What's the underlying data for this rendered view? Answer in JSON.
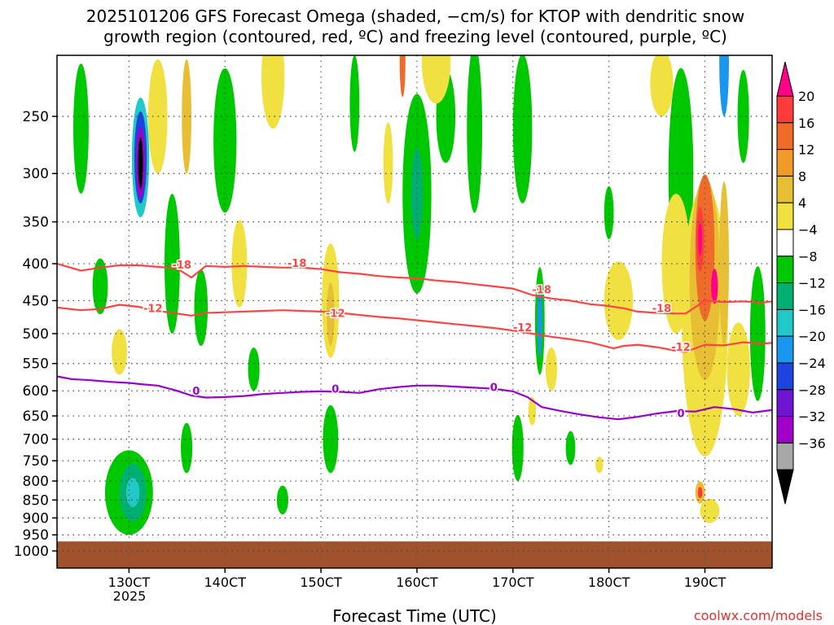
{
  "chart_data": {
    "type": "heatmap",
    "title_line1": "2025101206 GFS Forecast Omega (shaded, −cm/s) for KTOP with dendritic snow",
    "title_line2": "growth region (contoured, red, ºC) and freezing level (contoured, purple, ºC)",
    "xlabel": "Forecast Time (UTC)",
    "ylabel": "",
    "credit": "coolwx.com/models",
    "year_label": "2025",
    "x_ticks": [
      {
        "label": "130CT",
        "value": 130
      },
      {
        "label": "140CT",
        "value": 140
      },
      {
        "label": "150CT",
        "value": 150
      },
      {
        "label": "160CT",
        "value": 160
      },
      {
        "label": "170CT",
        "value": 170
      },
      {
        "label": "180CT",
        "value": 180
      },
      {
        "label": "190CT",
        "value": 190
      }
    ],
    "xlim": [
      122.5,
      197
    ],
    "y_ticks": [
      250,
      300,
      350,
      400,
      450,
      500,
      550,
      600,
      650,
      700,
      750,
      800,
      850,
      900,
      950,
      1000
    ],
    "ylim": [
      200,
      1000
    ],
    "y_scale": "log-pressure (inverted)",
    "colorbar": {
      "labels": [
        "20",
        "16",
        "12",
        "8",
        "4",
        "−4",
        "−8",
        "−12",
        "−16",
        "−20",
        "−24",
        "−28",
        "−32",
        "−36"
      ],
      "colors": [
        "#ff0088",
        "#ff3b3b",
        "#f06a2a",
        "#f09a2a",
        "#e8be34",
        "#f0e040",
        "#ffffff",
        "#00c800",
        "#00b070",
        "#20c8c8",
        "#1896f0",
        "#1e44e0",
        "#6e14d2",
        "#a000c8",
        "#a8a8a8",
        "#000000"
      ]
    },
    "contours": [
      {
        "name": "-18",
        "color": "#ff4444",
        "x": [
          122.5,
          125,
          127,
          129,
          131,
          133,
          135,
          136.5,
          138,
          140,
          142,
          144,
          146,
          148,
          150,
          152,
          154,
          156,
          158,
          160,
          162,
          164,
          166,
          168,
          170,
          172,
          174,
          176,
          178,
          179.5,
          180.5,
          181.5,
          183,
          185,
          187,
          188,
          190,
          192,
          194,
          196,
          197
        ],
        "y": [
          400,
          409,
          405,
          402,
          402,
          404,
          406,
          418,
          403,
          404,
          403,
          404,
          405,
          405,
          407,
          411,
          413,
          416,
          418,
          419,
          422,
          424,
          427,
          430,
          433,
          442,
          447,
          450,
          455,
          457,
          459,
          461,
          466,
          468,
          469,
          469,
          450,
          452,
          451,
          453,
          451
        ],
        "labels": [
          {
            "x": 135.5,
            "y": 401,
            "text": "-18"
          },
          {
            "x": 147.5,
            "y": 399,
            "text": "-18"
          },
          {
            "x": 173,
            "y": 434,
            "text": "-18"
          },
          {
            "x": 185.5,
            "y": 461,
            "text": "-18"
          }
        ]
      },
      {
        "name": "-12",
        "color": "#ff4444",
        "x": [
          122.5,
          125,
          127,
          129,
          131,
          133,
          135,
          136.5,
          138,
          140,
          142,
          144,
          146,
          148,
          150,
          152,
          154,
          156,
          158,
          160,
          162,
          164,
          166,
          168,
          170,
          172,
          174,
          176,
          178,
          179.5,
          180.5,
          181.5,
          183,
          185,
          187,
          188,
          190,
          192,
          194,
          196,
          197
        ],
        "y": [
          460,
          464,
          462,
          456,
          459,
          465,
          469,
          472,
          468,
          467,
          466,
          465,
          464,
          465,
          466,
          468,
          471,
          474,
          476,
          479,
          482,
          485,
          488,
          491,
          495,
          500,
          505,
          509,
          514,
          520,
          524,
          520,
          518,
          522,
          528,
          530,
          518,
          519,
          514,
          516,
          515
        ],
        "labels": [
          {
            "x": 132.5,
            "y": 461,
            "text": "-12"
          },
          {
            "x": 151.5,
            "y": 468,
            "text": "-12"
          },
          {
            "x": 171,
            "y": 490,
            "text": "-12"
          },
          {
            "x": 187.5,
            "y": 521,
            "text": "-12"
          }
        ]
      },
      {
        "name": "0",
        "color": "#9900cc",
        "x": [
          122.5,
          124,
          126,
          128,
          130,
          131.5,
          133,
          135,
          136.5,
          138,
          140,
          142,
          144,
          146,
          148,
          150,
          152,
          154,
          156,
          158,
          160,
          162,
          164,
          166,
          168,
          170,
          171.5,
          173,
          175,
          177,
          179,
          181,
          183,
          185,
          187,
          189,
          191,
          193,
          195,
          197
        ],
        "y": [
          573,
          578,
          580,
          583,
          585,
          588,
          590,
          600,
          609,
          613,
          612,
          610,
          606,
          604,
          602,
          601,
          602,
          604,
          597,
          593,
          590,
          590,
          592,
          594,
          596,
          601,
          612,
          632,
          640,
          647,
          653,
          657,
          652,
          645,
          640,
          641,
          632,
          636,
          643,
          638
        ],
        "labels": [
          {
            "x": 137,
            "y": 600,
            "text": "0"
          },
          {
            "x": 151.5,
            "y": 596,
            "text": "0"
          },
          {
            "x": 168,
            "y": 593,
            "text": "0"
          },
          {
            "x": 187.5,
            "y": 644,
            "text": "0"
          }
        ]
      }
    ],
    "omega_regions": [
      {
        "x": 130,
        "y": 830,
        "rx": 2.5,
        "ry": 120,
        "color": "#00c800"
      },
      {
        "x": 130.4,
        "y": 830,
        "rx": 1.4,
        "ry": 80,
        "color": "#00b070"
      },
      {
        "x": 130.4,
        "y": 830,
        "rx": 0.7,
        "ry": 40,
        "color": "#20c8c8"
      },
      {
        "x": 131.2,
        "y": 285,
        "rx": 0.9,
        "ry": 60,
        "color": "#20c8c8"
      },
      {
        "x": 131.2,
        "y": 285,
        "rx": 0.65,
        "ry": 45,
        "color": "#1e44e0"
      },
      {
        "x": 131.2,
        "y": 290,
        "rx": 0.45,
        "ry": 35,
        "color": "#a000c8"
      },
      {
        "x": 131.2,
        "y": 290,
        "rx": 0.25,
        "ry": 25,
        "color": "#000000"
      },
      {
        "x": 125,
        "y": 260,
        "rx": 0.8,
        "ry": 60,
        "color": "#00c800"
      },
      {
        "x": 127,
        "y": 430,
        "rx": 0.8,
        "ry": 40,
        "color": "#00c800"
      },
      {
        "x": 134.5,
        "y": 400,
        "rx": 0.8,
        "ry": 100,
        "color": "#00c800"
      },
      {
        "x": 136,
        "y": 720,
        "rx": 0.6,
        "ry": 60,
        "color": "#00c800"
      },
      {
        "x": 137.5,
        "y": 460,
        "rx": 0.7,
        "ry": 60,
        "color": "#00c800"
      },
      {
        "x": 140,
        "y": 270,
        "rx": 1.2,
        "ry": 70,
        "color": "#00c800"
      },
      {
        "x": 143,
        "y": 560,
        "rx": 0.6,
        "ry": 40,
        "color": "#00c800"
      },
      {
        "x": 146,
        "y": 850,
        "rx": 0.6,
        "ry": 40,
        "color": "#00c800"
      },
      {
        "x": 151,
        "y": 700,
        "rx": 0.8,
        "ry": 80,
        "color": "#00c800"
      },
      {
        "x": 153.5,
        "y": 240,
        "rx": 0.5,
        "ry": 40,
        "color": "#00c800"
      },
      {
        "x": 160,
        "y": 320,
        "rx": 1.5,
        "ry": 120,
        "color": "#00c800"
      },
      {
        "x": 160,
        "y": 320,
        "rx": 0.6,
        "ry": 50,
        "color": "#00b070"
      },
      {
        "x": 163,
        "y": 250,
        "rx": 1.0,
        "ry": 40,
        "color": "#00c800"
      },
      {
        "x": 166,
        "y": 260,
        "rx": 0.8,
        "ry": 80,
        "color": "#00c800"
      },
      {
        "x": 171,
        "y": 260,
        "rx": 1.0,
        "ry": 70,
        "color": "#00c800"
      },
      {
        "x": 172.8,
        "y": 480,
        "rx": 0.5,
        "ry": 90,
        "color": "#00c800"
      },
      {
        "x": 172.8,
        "y": 480,
        "rx": 0.25,
        "ry": 60,
        "color": "#1896f0"
      },
      {
        "x": 170.5,
        "y": 720,
        "rx": 0.6,
        "ry": 80,
        "color": "#00c800"
      },
      {
        "x": 176,
        "y": 720,
        "rx": 0.5,
        "ry": 40,
        "color": "#00c800"
      },
      {
        "x": 180,
        "y": 340,
        "rx": 0.5,
        "ry": 30,
        "color": "#00c800"
      },
      {
        "x": 187.5,
        "y": 300,
        "rx": 1.3,
        "ry": 120,
        "color": "#00c800"
      },
      {
        "x": 189,
        "y": 580,
        "rx": 0.6,
        "ry": 50,
        "color": "#00c800"
      },
      {
        "x": 194,
        "y": 250,
        "rx": 0.6,
        "ry": 40,
        "color": "#00c800"
      },
      {
        "x": 195.5,
        "y": 500,
        "rx": 0.8,
        "ry": 120,
        "color": "#00c800"
      },
      {
        "x": 192,
        "y": 210,
        "rx": 0.5,
        "ry": 40,
        "color": "#1896f0"
      },
      {
        "x": 129,
        "y": 530,
        "rx": 0.8,
        "ry": 40,
        "color": "#f0e040"
      },
      {
        "x": 133,
        "y": 250,
        "rx": 1.0,
        "ry": 50,
        "color": "#f0e040"
      },
      {
        "x": 136,
        "y": 250,
        "rx": 0.5,
        "ry": 50,
        "color": "#e8be34"
      },
      {
        "x": 141.5,
        "y": 400,
        "rx": 0.8,
        "ry": 60,
        "color": "#f0e040"
      },
      {
        "x": 145,
        "y": 220,
        "rx": 1.2,
        "ry": 40,
        "color": "#f0e040"
      },
      {
        "x": 151,
        "y": 450,
        "rx": 0.9,
        "ry": 90,
        "color": "#f0e040"
      },
      {
        "x": 151,
        "y": 470,
        "rx": 0.4,
        "ry": 50,
        "color": "#e8be34"
      },
      {
        "x": 157,
        "y": 290,
        "rx": 0.5,
        "ry": 40,
        "color": "#f0e040"
      },
      {
        "x": 162,
        "y": 210,
        "rx": 1.5,
        "ry": 30,
        "color": "#f0e040"
      },
      {
        "x": 158.5,
        "y": 210,
        "rx": 0.3,
        "ry": 25,
        "color": "#f06a2a"
      },
      {
        "x": 174,
        "y": 560,
        "rx": 0.6,
        "ry": 40,
        "color": "#f0e040"
      },
      {
        "x": 172,
        "y": 640,
        "rx": 0.4,
        "ry": 30,
        "color": "#f0e040"
      },
      {
        "x": 181,
        "y": 450,
        "rx": 1.5,
        "ry": 60,
        "color": "#f0e040"
      },
      {
        "x": 179,
        "y": 760,
        "rx": 0.4,
        "ry": 20,
        "color": "#f0e040"
      },
      {
        "x": 185.5,
        "y": 225,
        "rx": 1.2,
        "ry": 25,
        "color": "#f0e040"
      },
      {
        "x": 187,
        "y": 400,
        "rx": 1.5,
        "ry": 100,
        "color": "#f0e040"
      },
      {
        "x": 190,
        "y": 480,
        "rx": 2.4,
        "ry": 260,
        "color": "#f0e040"
      },
      {
        "x": 190,
        "y": 420,
        "rx": 1.6,
        "ry": 160,
        "color": "#e8be34"
      },
      {
        "x": 190,
        "y": 380,
        "rx": 1.0,
        "ry": 100,
        "color": "#f06a2a"
      },
      {
        "x": 189.5,
        "y": 370,
        "rx": 0.4,
        "ry": 40,
        "color": "#ff3b3b"
      },
      {
        "x": 189.5,
        "y": 370,
        "rx": 0.2,
        "ry": 20,
        "color": "#ff0088"
      },
      {
        "x": 191,
        "y": 430,
        "rx": 0.35,
        "ry": 25,
        "color": "#ff0088"
      },
      {
        "x": 192,
        "y": 400,
        "rx": 0.5,
        "ry": 120,
        "color": "#e8be34"
      },
      {
        "x": 193.5,
        "y": 560,
        "rx": 1.2,
        "ry": 90,
        "color": "#f0e040"
      },
      {
        "x": 189.5,
        "y": 830,
        "rx": 0.5,
        "ry": 30,
        "color": "#e8be34"
      },
      {
        "x": 189.5,
        "y": 830,
        "rx": 0.25,
        "ry": 15,
        "color": "#ff3b3b"
      },
      {
        "x": 190.5,
        "y": 880,
        "rx": 1.0,
        "ry": 35,
        "color": "#f0e040"
      }
    ],
    "ground": {
      "top_pressure_approx": 970,
      "color": "#a0522d"
    }
  }
}
